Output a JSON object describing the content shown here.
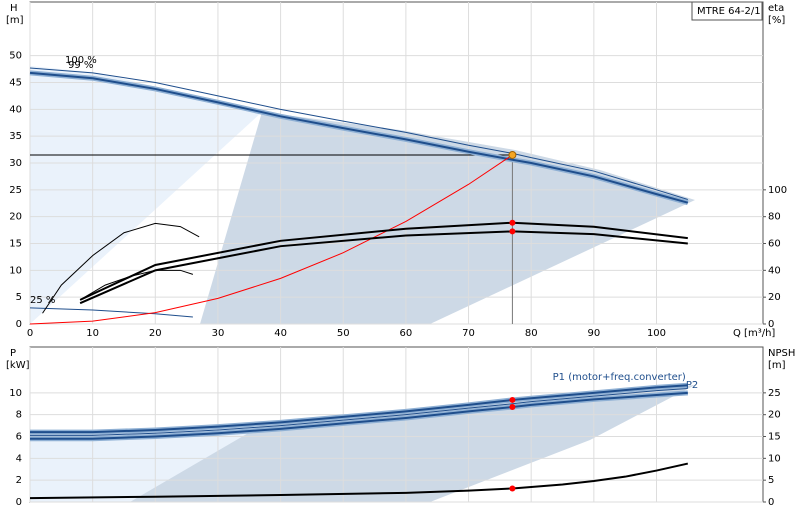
{
  "chart_data": [
    {
      "type": "line",
      "title": "MTRE 64-2/1",
      "ylabel": "H",
      "yunit": "[m]",
      "y2label": "eta",
      "y2unit": "[%]",
      "xlabel": "Q [m³/h]",
      "xlim": [
        0,
        117
      ],
      "xticks": [
        0,
        10,
        20,
        30,
        40,
        50,
        60,
        70,
        80,
        90,
        100
      ],
      "ylim": [
        0,
        60
      ],
      "yticks": [
        0,
        5,
        10,
        15,
        20,
        25,
        30,
        35,
        40,
        45,
        50
      ],
      "y2lim": [
        0,
        240
      ],
      "y2ticks": [
        0,
        20,
        40,
        60,
        80,
        100
      ],
      "grid": true,
      "series_label_position": "start",
      "duty_point": {
        "x": 77,
        "y": 31.5,
        "color": "#f5a623"
      },
      "series": [
        {
          "name": "100 %",
          "color": "#1f4e8c",
          "style": "thin",
          "x": [
            0,
            10,
            20,
            30,
            40,
            50,
            60,
            70,
            77,
            80,
            90,
            100,
            105
          ],
          "values": [
            47.7,
            46.8,
            45,
            42.5,
            40,
            37.8,
            35.7,
            33.3,
            31.8,
            31,
            28.5,
            25,
            23.2
          ]
        },
        {
          "name": "99 %",
          "color": "#1f4e8c",
          "style": "thick",
          "x": [
            0,
            10,
            20,
            30,
            40,
            50,
            60,
            70,
            77,
            80,
            90,
            100,
            105
          ],
          "values": [
            46.8,
            45.8,
            43.8,
            41.3,
            38.7,
            36.5,
            34.4,
            32.1,
            30.6,
            30,
            27.5,
            24.2,
            22.6
          ]
        },
        {
          "name": "25 %",
          "color": "#1f4e8c",
          "style": "thin",
          "x": [
            0,
            10,
            20,
            26
          ],
          "values": [
            3,
            2.6,
            1.9,
            1.3
          ]
        },
        {
          "color": "#ff0000",
          "style": "thin",
          "x": [
            0,
            10,
            20,
            30,
            40,
            50,
            60,
            70,
            77
          ],
          "values": [
            0,
            0.53,
            2.12,
            4.78,
            8.5,
            13.28,
            19.12,
            26.02,
            31.5
          ]
        },
        {
          "color": "#000000",
          "style": "thick",
          "axis": "y2",
          "x": [
            8,
            20,
            40,
            60,
            77,
            90,
            105
          ],
          "values": [
            18,
            44,
            62,
            71,
            75.5,
            72.5,
            64
          ]
        },
        {
          "color": "#000000",
          "style": "thick",
          "axis": "y2",
          "x": [
            8,
            20,
            40,
            60,
            77,
            90,
            105
          ],
          "values": [
            15.5,
            40,
            58,
            66,
            69,
            67,
            60
          ]
        },
        {
          "color": "#000000",
          "style": "thin",
          "axis": "y2",
          "x": [
            2,
            5,
            10,
            15,
            20,
            24,
            27
          ],
          "values": [
            8,
            29,
            51,
            68,
            75,
            72.6,
            65
          ]
        },
        {
          "color": "#000000",
          "style": "thin",
          "axis": "y2",
          "x": [
            8,
            12,
            16,
            20,
            24,
            26
          ],
          "values": [
            18,
            29,
            35.5,
            40,
            40,
            37
          ]
        },
        {
          "color": "#ff0000",
          "style": "points",
          "axis": "y2",
          "x": [
            77,
            77
          ],
          "values": [
            75.5,
            69
          ]
        }
      ]
    },
    {
      "type": "line",
      "ylabel": "P",
      "yunit": "[kW]",
      "y2label": "NPSH",
      "y2unit": "[m]",
      "xlim": [
        0,
        117
      ],
      "xticks": [
        0,
        10,
        20,
        30,
        40,
        50,
        60,
        70,
        80,
        90,
        100
      ],
      "ylim": [
        0,
        14.2
      ],
      "yticks": [
        0,
        2,
        4,
        6,
        8,
        10
      ],
      "y2lim": [
        0,
        35.5
      ],
      "y2ticks": [
        0,
        5,
        10,
        15,
        20,
        25
      ],
      "grid": true,
      "series_label_position": "end",
      "series": [
        {
          "name": "P1 (motor+freq.converter)",
          "color": "#1f4e8c",
          "style": "thick",
          "x": [
            0,
            10,
            20,
            30,
            40,
            50,
            60,
            70,
            77,
            80,
            90,
            100,
            105
          ],
          "values": [
            6.4,
            6.4,
            6.6,
            6.9,
            7.3,
            7.8,
            8.3,
            8.9,
            9.35,
            9.5,
            10,
            10.5,
            10.7
          ]
        },
        {
          "color": "#1f4e8c",
          "style": "thin",
          "x": [
            0,
            10,
            20,
            30,
            40,
            50,
            60,
            70,
            77,
            80,
            90,
            100,
            105
          ],
          "values": [
            6.1,
            6.1,
            6.3,
            6.6,
            7,
            7.5,
            8,
            8.6,
            9,
            9.2,
            9.7,
            10.2,
            10.4
          ]
        },
        {
          "name": "P2",
          "color": "#1f4e8c",
          "style": "thick",
          "x": [
            0,
            10,
            20,
            30,
            40,
            50,
            60,
            70,
            77,
            80,
            90,
            100,
            105
          ],
          "values": [
            5.8,
            5.8,
            6,
            6.3,
            6.7,
            7.2,
            7.7,
            8.3,
            8.7,
            8.9,
            9.4,
            9.8,
            10
          ]
        },
        {
          "color": "#000000",
          "style": "thick",
          "axis": "y2",
          "x": [
            0,
            20,
            40,
            60,
            70,
            77,
            85,
            90,
            95,
            100,
            105
          ],
          "values": [
            0.9,
            1.2,
            1.6,
            2.1,
            2.6,
            3.1,
            4,
            4.8,
            5.8,
            7.2,
            8.8
          ]
        },
        {
          "color": "#ff0000",
          "style": "points",
          "x": [
            77,
            77
          ],
          "values": [
            9.35,
            8.7
          ]
        },
        {
          "color": "#ff0000",
          "style": "points",
          "axis": "y2",
          "x": [
            77
          ],
          "values": [
            3.1
          ]
        }
      ]
    }
  ]
}
